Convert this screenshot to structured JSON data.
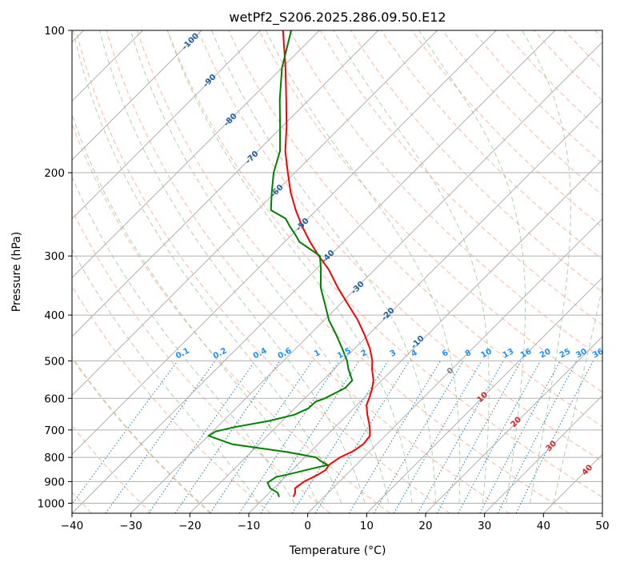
{
  "chart_data": {
    "type": "line",
    "subtype": "skew-t log-p",
    "title": "wetPf2_S206.2025.286.09.50.E12",
    "xlabel": "Temperature (°C)",
    "ylabel": "Pressure (hPa)",
    "xlim": [
      -40,
      50
    ],
    "ylim": [
      1050,
      100
    ],
    "x_ticks": [
      -40,
      -30,
      -20,
      -10,
      0,
      10,
      20,
      30,
      40,
      50
    ],
    "x_tick_labels": [
      "−40",
      "−30",
      "−20",
      "−10",
      "0",
      "10",
      "20",
      "30",
      "40",
      "50"
    ],
    "y_ticks": [
      100,
      200,
      300,
      400,
      500,
      600,
      700,
      800,
      900,
      1000
    ],
    "y_tick_labels": [
      "100",
      "200",
      "300",
      "400",
      "500",
      "600",
      "700",
      "800",
      "900",
      "1000"
    ],
    "colors": {
      "temperature": "#ff0000",
      "dewpoint": "#008000",
      "isotherm": "#b0b0b0",
      "dry_adiabat": "#ffa07a",
      "moist_adiabat": "#8fbc8f",
      "mixing_ratio": "#1f77b4",
      "mixing_label": "#1e90ff",
      "isotherm_label": "#1f5f9f",
      "wet_bulb_label": "#d62728",
      "zero_label": "#808080",
      "dry_adiabat_thick": "#d2b48c"
    },
    "series": [
      {
        "name": "Temperature",
        "color": "#ff0000",
        "pressure": [
          970,
          950,
          930,
          900,
          870,
          850,
          830,
          800,
          775,
          750,
          720,
          700,
          680,
          650,
          620,
          600,
          575,
          550,
          520,
          500,
          470,
          440,
          410,
          380,
          350,
          320,
          300,
          280,
          260,
          240,
          220,
          200,
          180,
          160,
          140,
          120,
          100
        ],
        "values": [
          -5.2,
          -5.6,
          -6.4,
          -6.0,
          -4.8,
          -4.3,
          -4.6,
          -4.0,
          -2.8,
          -2.3,
          -2.6,
          -3.6,
          -4.7,
          -6.6,
          -8.4,
          -9.1,
          -10.1,
          -11.4,
          -13.6,
          -14.9,
          -17.5,
          -20.7,
          -24.3,
          -28.6,
          -33.2,
          -37.9,
          -41.8,
          -45.7,
          -49.6,
          -53.5,
          -57.4,
          -61.2,
          -65.3,
          -69.2,
          -73.9,
          -79.4,
          -86.2
        ]
      },
      {
        "name": "Dewpoint",
        "color": "#008000",
        "pressure": [
          970,
          950,
          930,
          905,
          880,
          870,
          850,
          830,
          815,
          800,
          780,
          750,
          720,
          705,
          690,
          670,
          650,
          630,
          610,
          600,
          570,
          550,
          520,
          500,
          470,
          440,
          410,
          380,
          350,
          320,
          300,
          290,
          280,
          270,
          260,
          250,
          240,
          220,
          200,
          180,
          160,
          140,
          120,
          100
        ],
        "values": [
          -7.6,
          -8.6,
          -10.6,
          -12.0,
          -11.5,
          -10.0,
          -7.5,
          -4.8,
          -6.6,
          -8.1,
          -13.7,
          -24.6,
          -30.0,
          -29.5,
          -27.0,
          -22.3,
          -19.0,
          -17.7,
          -17.6,
          -16.6,
          -14.9,
          -15.0,
          -17.6,
          -19.2,
          -22.2,
          -25.5,
          -29.2,
          -32.5,
          -36.1,
          -39.2,
          -41.6,
          -44.5,
          -47.5,
          -49.5,
          -51.7,
          -53.8,
          -57.7,
          -60.6,
          -63.6,
          -66.2,
          -70.3,
          -75.0,
          -80.0,
          -84.8
        ]
      }
    ],
    "isotherm_labels": [
      "-100",
      "-90",
      "-80",
      "-70",
      "-60",
      "-50",
      "-40",
      "-30",
      "-20",
      "-10"
    ],
    "mixing_ratio_labels": [
      "0.1",
      "0.2",
      "0.4",
      "0.6",
      "1",
      "1.5",
      "2",
      "3",
      "4",
      "6",
      "8",
      "10",
      "13",
      "16",
      "20",
      "25",
      "30",
      "36"
    ],
    "wet_bulb_labels": [
      "0",
      "10",
      "20",
      "30",
      "40"
    ]
  }
}
